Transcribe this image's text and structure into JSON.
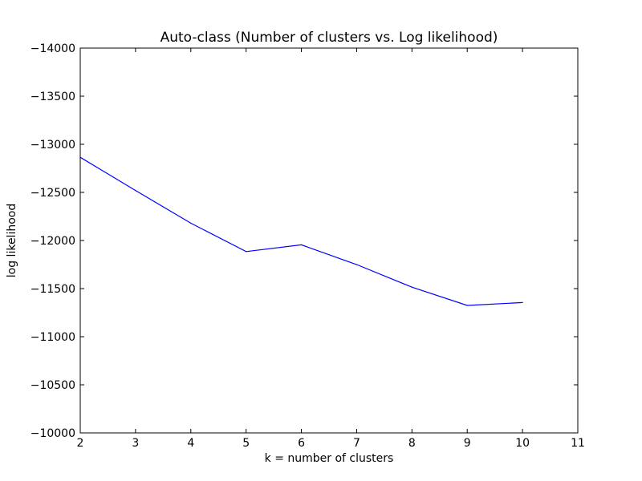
{
  "chart_data": {
    "type": "line",
    "title": "Auto-class (Number of clusters vs. Log likelihood)",
    "xlabel": "k = number of clusters",
    "ylabel": "log likelihood",
    "xlim": [
      2,
      11
    ],
    "ylim": [
      -10000,
      -14000
    ],
    "y_axis_inverted": true,
    "grid": false,
    "x_ticks": [
      2,
      3,
      4,
      5,
      6,
      7,
      8,
      9,
      10,
      11
    ],
    "y_ticks": [
      -10000,
      -10500,
      -11000,
      -11500,
      -12000,
      -12500,
      -13000,
      -13500,
      -14000
    ],
    "x_tick_labels": [
      "2",
      "3",
      "4",
      "5",
      "6",
      "7",
      "8",
      "9",
      "10",
      "11"
    ],
    "y_tick_labels": [
      "−10000",
      "−10500",
      "−11000",
      "−11500",
      "−12000",
      "−12500",
      "−13000",
      "−13500",
      "−14000"
    ],
    "series": [
      {
        "color": "#0000ff",
        "x": [
          2,
          3,
          4,
          5,
          6,
          7,
          8,
          9,
          10
        ],
        "y": [
          -12865,
          -12520,
          -12180,
          -11885,
          -11955,
          -11750,
          -11515,
          -11325,
          -11355
        ]
      }
    ]
  }
}
